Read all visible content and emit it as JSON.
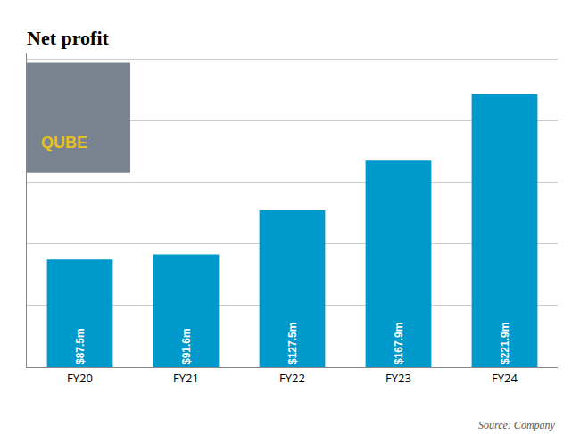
{
  "chart_data": {
    "type": "bar",
    "title": "Net profit",
    "categories": [
      "FY20",
      "FY21",
      "FY22",
      "FY23",
      "FY24"
    ],
    "values": [
      87.5,
      91.6,
      127.5,
      167.9,
      221.9
    ],
    "value_labels": [
      "$87.5m",
      "$91.6m",
      "$127.5m",
      "$167.9m",
      "$221.9m"
    ],
    "data_labels": true,
    "color": "#0099cc",
    "ylim": [
      0,
      255
    ],
    "yticks": [
      50,
      100,
      150,
      200,
      250
    ],
    "grid": true,
    "tick_labels": "x",
    "annotations": [
      "Source: Company",
      "QUBE"
    ]
  }
}
